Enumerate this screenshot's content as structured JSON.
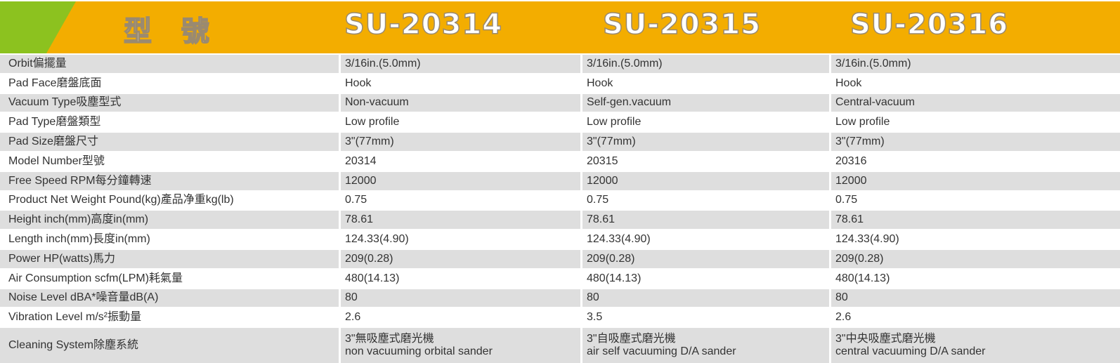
{
  "header": {
    "title": "型 號",
    "models": [
      "SU-20314",
      "SU-20315",
      "SU-20316"
    ]
  },
  "colors": {
    "header_orange": "#f3ad00",
    "header_green": "#8cc21f",
    "row_gray": "#dedede"
  },
  "rows": [
    {
      "label": "Orbit偏擺量",
      "values": [
        "3/16in.(5.0mm)",
        "3/16in.(5.0mm)",
        "3/16in.(5.0mm)"
      ]
    },
    {
      "label": "Pad Face磨盤底面",
      "values": [
        "Hook",
        "Hook",
        "Hook"
      ]
    },
    {
      "label": "Vacuum Type吸塵型式",
      "values": [
        "Non-vacuum",
        "Self-gen.vacuum",
        "Central-vacuum"
      ]
    },
    {
      "label": "Pad Type磨盤類型",
      "values": [
        "Low profile",
        "Low profile",
        "Low profile"
      ]
    },
    {
      "label": "Pad Size磨盤尺寸",
      "values": [
        "3\"(77mm)",
        "3\"(77mm)",
        "3\"(77mm)"
      ]
    },
    {
      "label": "Model Number型號",
      "values": [
        "20314",
        "20315",
        "20316"
      ]
    },
    {
      "label": "Free Speed RPM每分鐘轉速",
      "values": [
        "12000",
        "12000",
        "12000"
      ]
    },
    {
      "label": "Product Net Weight Pound(kg)產品净重kg(lb)",
      "values": [
        "0.75",
        "0.75",
        "0.75"
      ]
    },
    {
      "label": "Height inch(mm)高度in(mm)",
      "values": [
        "78.61",
        "78.61",
        "78.61"
      ]
    },
    {
      "label": "Length inch(mm)長度in(mm)",
      "values": [
        "124.33(4.90)",
        "124.33(4.90)",
        "124.33(4.90)"
      ]
    },
    {
      "label": "Power HP(watts)馬力",
      "values": [
        "209(0.28)",
        "209(0.28)",
        "209(0.28)"
      ]
    },
    {
      "label": "Air Consumption scfm(LPM)耗氣量",
      "values": [
        "480(14.13)",
        "480(14.13)",
        "480(14.13)"
      ]
    },
    {
      "label": "Noise Level dBA*噪音量dB(A)",
      "values": [
        "80",
        "80",
        "80"
      ]
    },
    {
      "label": "Vibration Level m/s²振動量",
      "values": [
        "2.6",
        "3.5",
        "2.6"
      ]
    }
  ],
  "cleaning": {
    "label": "Cleaning System除塵系統",
    "values": [
      {
        "zh": "3\"無吸塵式磨光機",
        "en": "non vacuuming orbital sander"
      },
      {
        "zh": "3\"自吸塵式磨光機",
        "en": "air self vacuuming D/A sander"
      },
      {
        "zh": "3\"中央吸塵式磨光機",
        "en": "central vacuuming D/A sander"
      }
    ]
  }
}
